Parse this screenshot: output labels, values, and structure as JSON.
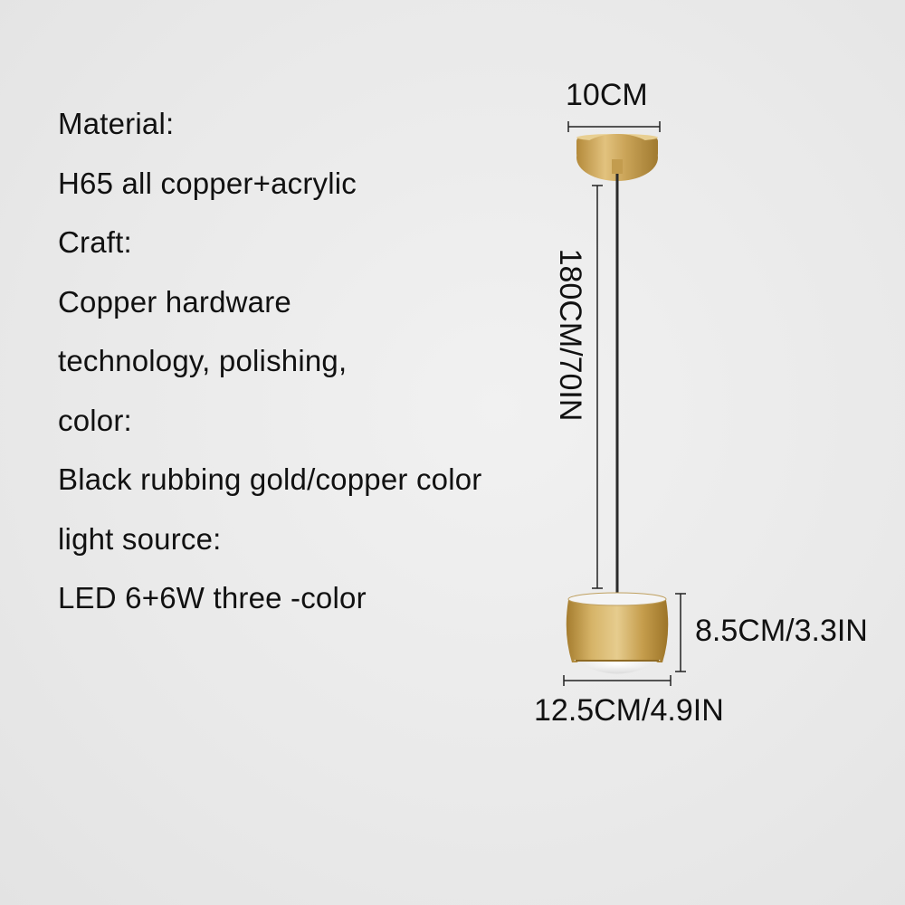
{
  "specs": {
    "lines": [
      "Material:",
      "H65 all copper+acrylic",
      "Craft:",
      "Copper hardware",
      "technology, polishing,",
      "color:",
      "Black rubbing gold/copper color",
      "light source:",
      "LED 6+6W three -color"
    ]
  },
  "dimensions": {
    "canopy_diameter": "10CM",
    "cord_length": "180CM/70IN",
    "shade_height": "8.5CM/3.3IN",
    "shade_width": "12.5CM/4.9IN"
  },
  "colors": {
    "background": "#ececec",
    "brass": "#c9a24e",
    "cord": "#2a2a2a",
    "dimension_line": "#222222"
  }
}
